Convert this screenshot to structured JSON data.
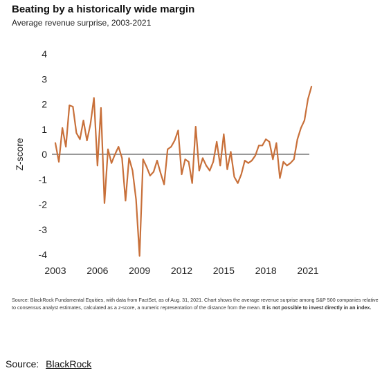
{
  "header": {
    "title": "Beating by a historically wide margin",
    "subtitle": "Average revenue surprise, 2003-2021"
  },
  "note": {
    "text": "Source: BlackRock Fundamental Equities, with data from FactSet, as of Aug. 31, 2021. Chart shows the average revenue surprise among S&P 500 companies relative to consensus analyst estimates, calculated as a z-score, a numeric representation of the distance from the mean.",
    "bold_text": "It is not possible to invest directly in an index."
  },
  "source": {
    "label": "Source:",
    "link_text": "BlackRock"
  },
  "colors": {
    "line": "#c8703a",
    "zero_line": "#333333"
  },
  "chart_data": {
    "type": "line",
    "title": "Beating by a historically wide margin",
    "subtitle": "Average revenue surprise, 2003-2021",
    "ylabel": "Z-score",
    "xlabel": "",
    "xlim": [
      2003,
      2021.3
    ],
    "ylim": [
      -4,
      4
    ],
    "x_ticks": [
      2003,
      2006,
      2009,
      2012,
      2015,
      2018,
      2021
    ],
    "y_ticks": [
      -4,
      -3,
      -2,
      -1,
      0,
      1,
      2,
      3,
      4
    ],
    "grid": false,
    "series": [
      {
        "x": [
          2003.0,
          2003.25,
          2003.5,
          2003.75,
          2004.0,
          2004.25,
          2004.5,
          2004.75,
          2005.0,
          2005.25,
          2005.5,
          2005.75,
          2006.0,
          2006.25,
          2006.5,
          2006.75,
          2007.0,
          2007.25,
          2007.5,
          2007.75,
          2008.0,
          2008.25,
          2008.5,
          2008.75,
          2009.0,
          2009.25,
          2009.5,
          2009.75,
          2010.0,
          2010.25,
          2010.5,
          2010.75,
          2011.0,
          2011.25,
          2011.5,
          2011.75,
          2012.0,
          2012.25,
          2012.5,
          2012.75,
          2013.0,
          2013.25,
          2013.5,
          2013.75,
          2014.0,
          2014.25,
          2014.5,
          2014.75,
          2015.0,
          2015.25,
          2015.5,
          2015.75,
          2016.0,
          2016.25,
          2016.5,
          2016.75,
          2017.0,
          2017.25,
          2017.5,
          2017.75,
          2018.0,
          2018.25,
          2018.5,
          2018.75,
          2019.0,
          2019.25,
          2019.5,
          2019.75,
          2020.0,
          2020.25,
          2020.5,
          2020.75,
          2021.0,
          2021.25
        ],
        "values": [
          0.45,
          -0.3,
          1.05,
          0.3,
          1.95,
          1.9,
          0.85,
          0.6,
          1.35,
          0.55,
          1.2,
          2.25,
          -0.45,
          1.85,
          -1.95,
          0.2,
          -0.35,
          0.0,
          0.3,
          -0.15,
          -1.85,
          -0.15,
          -0.65,
          -1.8,
          -4.05,
          -0.2,
          -0.5,
          -0.85,
          -0.7,
          -0.25,
          -0.75,
          -1.2,
          0.2,
          0.3,
          0.55,
          0.95,
          -0.8,
          -0.2,
          -0.3,
          -1.15,
          1.1,
          -0.65,
          -0.15,
          -0.45,
          -0.65,
          -0.3,
          0.5,
          -0.45,
          0.8,
          -0.6,
          0.1,
          -0.9,
          -1.15,
          -0.8,
          -0.25,
          -0.35,
          -0.25,
          -0.05,
          0.35,
          0.35,
          0.6,
          0.5,
          -0.2,
          0.45,
          -0.95,
          -0.3,
          -0.45,
          -0.35,
          -0.2,
          0.6,
          1.05,
          1.35,
          2.2,
          2.7
        ]
      }
    ]
  }
}
